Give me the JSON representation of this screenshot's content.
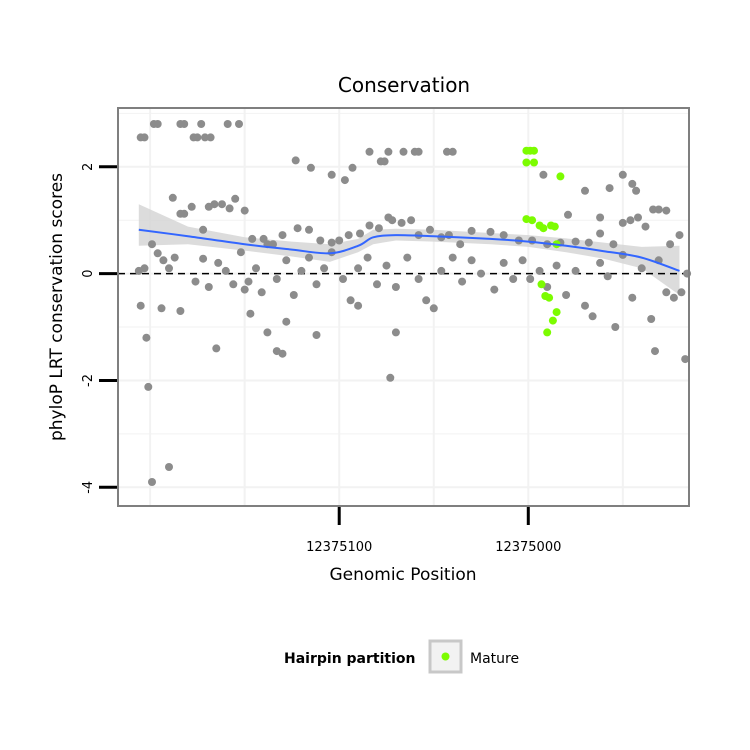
{
  "chart_data": {
    "type": "scatter",
    "title": "Conservation",
    "xlabel": "Genomic Position",
    "ylabel": "phyloP LRT conservation scores",
    "x_reversed": true,
    "xlim": [
      12375217,
      12374915
    ],
    "ylim": [
      -4.35,
      3.1
    ],
    "x_ticks": [
      12375100,
      12375000
    ],
    "x_tick_labels": [
      "12375100",
      "12375000"
    ],
    "y_ticks": [
      -4,
      -2,
      0,
      2
    ],
    "y_tick_labels": [
      "-4",
      "-2",
      "0",
      "2"
    ],
    "grid": true,
    "reference_line": {
      "y": 0,
      "style": "dashed"
    },
    "colors": {
      "background_points": "#8c8c8c",
      "mature": "#7cfc00",
      "smooth": "#3366ff",
      "band": "#d3d3d3",
      "panel_border": "#7f7f7f"
    },
    "legend": {
      "title": "Hairpin partition",
      "position": "bottom",
      "entries": [
        {
          "label": "Mature",
          "color": "#7cfc00"
        }
      ]
    },
    "series": [
      {
        "points": [
          [
            12375205,
            2.55
          ],
          [
            12375203,
            2.55
          ],
          [
            12375198,
            2.8
          ],
          [
            12375196,
            2.8
          ],
          [
            12375184,
            2.8
          ],
          [
            12375182,
            2.8
          ],
          [
            12375177,
            2.55
          ],
          [
            12375175,
            2.55
          ],
          [
            12375173,
            2.8
          ],
          [
            12375171,
            2.55
          ],
          [
            12375168,
            2.55
          ],
          [
            12375159,
            2.8
          ],
          [
            12375153,
            2.8
          ],
          [
            12375123,
            2.12
          ],
          [
            12375115,
            1.98
          ],
          [
            12375104,
            1.85
          ],
          [
            12375097,
            1.75
          ],
          [
            12375093,
            1.98
          ],
          [
            12375084,
            2.28
          ],
          [
            12375078,
            2.1
          ],
          [
            12375076,
            2.1
          ],
          [
            12375074,
            2.28
          ],
          [
            12375066,
            2.28
          ],
          [
            12375060,
            2.28
          ],
          [
            12375058,
            2.28
          ],
          [
            12375043,
            2.28
          ],
          [
            12375040,
            2.28
          ],
          [
            12374992,
            1.85
          ],
          [
            12374970,
            1.55
          ],
          [
            12374950,
            1.85
          ],
          [
            12374957,
            1.6
          ],
          [
            12374945,
            1.68
          ],
          [
            12374943,
            1.55
          ],
          [
            12375188,
            1.42
          ],
          [
            12375182,
            1.12
          ],
          [
            12375184,
            1.12
          ],
          [
            12375178,
            1.25
          ],
          [
            12375172,
            0.82
          ],
          [
            12375169,
            1.25
          ],
          [
            12375166,
            1.3
          ],
          [
            12375162,
            1.3
          ],
          [
            12375158,
            1.22
          ],
          [
            12375155,
            1.4
          ],
          [
            12375150,
            1.18
          ],
          [
            12375146,
            0.65
          ],
          [
            12375140,
            0.65
          ],
          [
            12375135,
            0.55
          ],
          [
            12375130,
            0.72
          ],
          [
            12375122,
            0.85
          ],
          [
            12375116,
            0.82
          ],
          [
            12375110,
            0.62
          ],
          [
            12375104,
            0.58
          ],
          [
            12375100,
            0.62
          ],
          [
            12375095,
            0.72
          ],
          [
            12375089,
            0.75
          ],
          [
            12375084,
            0.9
          ],
          [
            12375079,
            0.85
          ],
          [
            12375074,
            1.05
          ],
          [
            12375072,
            1.0
          ],
          [
            12375067,
            0.95
          ],
          [
            12375062,
            1.0
          ],
          [
            12375058,
            0.72
          ],
          [
            12375052,
            0.82
          ],
          [
            12375046,
            0.68
          ],
          [
            12375042,
            0.72
          ],
          [
            12375036,
            0.55
          ],
          [
            12375030,
            0.8
          ],
          [
            12375020,
            0.78
          ],
          [
            12375013,
            0.72
          ],
          [
            12375005,
            0.62
          ],
          [
            12374998,
            0.62
          ],
          [
            12374990,
            0.55
          ],
          [
            12374983,
            0.58
          ],
          [
            12374975,
            0.6
          ],
          [
            12374968,
            0.58
          ],
          [
            12374962,
            0.75
          ],
          [
            12374955,
            0.55
          ],
          [
            12374950,
            0.95
          ],
          [
            12374946,
            1.0
          ],
          [
            12374942,
            1.05
          ],
          [
            12374938,
            0.88
          ],
          [
            12374934,
            1.2
          ],
          [
            12374931,
            1.2
          ],
          [
            12374927,
            1.18
          ],
          [
            12374925,
            0.55
          ],
          [
            12374920,
            0.72
          ],
          [
            12374962,
            1.05
          ],
          [
            12374979,
            1.1
          ],
          [
            12375206,
            0.05
          ],
          [
            12375203,
            0.1
          ],
          [
            12375199,
            0.55
          ],
          [
            12375196,
            0.38
          ],
          [
            12375193,
            0.25
          ],
          [
            12375190,
            0.1
          ],
          [
            12375187,
            0.3
          ],
          [
            12375184,
            -0.7
          ],
          [
            12375176,
            -0.15
          ],
          [
            12375172,
            0.28
          ],
          [
            12375169,
            -0.25
          ],
          [
            12375164,
            0.2
          ],
          [
            12375160,
            0.05
          ],
          [
            12375156,
            -0.2
          ],
          [
            12375152,
            0.4
          ],
          [
            12375148,
            -0.15
          ],
          [
            12375144,
            0.1
          ],
          [
            12375141,
            -0.35
          ],
          [
            12375138,
            0.55
          ],
          [
            12375133,
            -0.1
          ],
          [
            12375128,
            0.25
          ],
          [
            12375124,
            -0.4
          ],
          [
            12375120,
            0.05
          ],
          [
            12375116,
            0.3
          ],
          [
            12375112,
            -0.2
          ],
          [
            12375108,
            0.1
          ],
          [
            12375104,
            0.4
          ],
          [
            12375098,
            -0.1
          ],
          [
            12375094,
            -0.5
          ],
          [
            12375090,
            0.1
          ],
          [
            12375085,
            0.3
          ],
          [
            12375080,
            -0.2
          ],
          [
            12375075,
            0.15
          ],
          [
            12375070,
            -0.25
          ],
          [
            12375064,
            0.3
          ],
          [
            12375058,
            -0.1
          ],
          [
            12375054,
            -0.5
          ],
          [
            12375050,
            -0.65
          ],
          [
            12375046,
            0.05
          ],
          [
            12375040,
            0.3
          ],
          [
            12375035,
            -0.15
          ],
          [
            12375030,
            0.25
          ],
          [
            12375025,
            0.0
          ],
          [
            12375018,
            -0.3
          ],
          [
            12375013,
            0.2
          ],
          [
            12375008,
            -0.1
          ],
          [
            12375003,
            0.25
          ],
          [
            12374999,
            -0.1
          ],
          [
            12374994,
            0.05
          ],
          [
            12374990,
            -0.25
          ],
          [
            12374985,
            0.15
          ],
          [
            12374980,
            -0.4
          ],
          [
            12374975,
            0.05
          ],
          [
            12374970,
            -0.6
          ],
          [
            12374966,
            -0.8
          ],
          [
            12374962,
            0.2
          ],
          [
            12374958,
            -0.05
          ],
          [
            12374954,
            -1.0
          ],
          [
            12374950,
            0.35
          ],
          [
            12374945,
            -0.45
          ],
          [
            12374940,
            0.1
          ],
          [
            12374935,
            -0.85
          ],
          [
            12374931,
            0.25
          ],
          [
            12374927,
            -0.35
          ],
          [
            12374923,
            -0.45
          ],
          [
            12374919,
            -0.35
          ],
          [
            12374916,
            0.0
          ],
          [
            12375205,
            -0.6
          ],
          [
            12375202,
            -1.2
          ],
          [
            12375194,
            -0.65
          ],
          [
            12375165,
            -1.4
          ],
          [
            12375150,
            -0.3
          ],
          [
            12375147,
            -0.75
          ],
          [
            12375138,
            -1.1
          ],
          [
            12375133,
            -1.45
          ],
          [
            12375130,
            -1.5
          ],
          [
            12375128,
            -0.9
          ],
          [
            12375112,
            -1.15
          ],
          [
            12375090,
            -0.6
          ],
          [
            12375070,
            -1.1
          ],
          [
            12375073,
            -1.95
          ],
          [
            12374933,
            -1.45
          ],
          [
            12374917,
            -1.6
          ],
          [
            12375201,
            -2.12
          ],
          [
            12375199,
            -3.9
          ],
          [
            12375190,
            -3.62
          ]
        ]
      },
      {
        "name": "Mature",
        "points": [
          [
            12375001,
            2.3
          ],
          [
            12374999,
            2.3
          ],
          [
            12374997,
            2.3
          ],
          [
            12375001,
            2.08
          ],
          [
            12374997,
            2.08
          ],
          [
            12375001,
            1.02
          ],
          [
            12374998,
            1.0
          ],
          [
            12374994,
            0.9
          ],
          [
            12374992,
            0.85
          ],
          [
            12374988,
            0.9
          ],
          [
            12374986,
            0.88
          ],
          [
            12374985,
            0.55
          ],
          [
            12374993,
            -0.2
          ],
          [
            12374991,
            -0.42
          ],
          [
            12374989,
            -0.45
          ],
          [
            12374985,
            -0.72
          ],
          [
            12374987,
            -0.88
          ],
          [
            12374990,
            -1.1
          ],
          [
            12374983,
            1.82
          ]
        ]
      }
    ],
    "smooth_fit": {
      "x": [
        12375206,
        12375180,
        12375150,
        12375125,
        12375105,
        12375090,
        12375082,
        12375070,
        12375050,
        12375020,
        12375000,
        12374980,
        12374960,
        12374940,
        12374920
      ],
      "y": [
        0.82,
        0.7,
        0.55,
        0.45,
        0.38,
        0.52,
        0.68,
        0.72,
        0.7,
        0.65,
        0.6,
        0.52,
        0.42,
        0.3,
        0.05
      ],
      "lower": [
        0.52,
        0.55,
        0.43,
        0.32,
        0.22,
        0.4,
        0.55,
        0.62,
        0.6,
        0.55,
        0.5,
        0.4,
        0.28,
        0.1,
        -0.4
      ],
      "upper": [
        1.3,
        0.88,
        0.68,
        0.6,
        0.55,
        0.65,
        0.82,
        0.84,
        0.82,
        0.76,
        0.72,
        0.66,
        0.58,
        0.5,
        0.52
      ]
    }
  }
}
